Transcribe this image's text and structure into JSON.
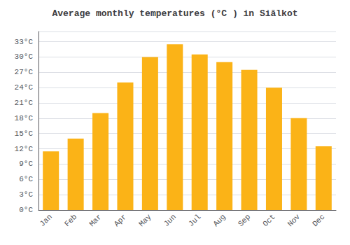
{
  "chart_data": {
    "type": "bar",
    "title": "Average monthly temperatures (°C ) in Siālkot",
    "categories": [
      "Jan",
      "Feb",
      "Mar",
      "Apr",
      "May",
      "Jun",
      "Jul",
      "Aug",
      "Sep",
      "Oct",
      "Nov",
      "Dec"
    ],
    "values": [
      11.5,
      14.0,
      19.0,
      25.0,
      30.0,
      32.5,
      30.5,
      29.0,
      27.5,
      24.0,
      18.0,
      12.5
    ],
    "color": "#FBB317",
    "ylim": [
      0,
      35
    ],
    "yticks": [
      {
        "value": 0,
        "label": "0°C"
      },
      {
        "value": 3,
        "label": "3°C"
      },
      {
        "value": 6,
        "label": "6°C"
      },
      {
        "value": 9,
        "label": "9°C"
      },
      {
        "value": 12,
        "label": "12°C"
      },
      {
        "value": 15,
        "label": "15°C"
      },
      {
        "value": 18,
        "label": "18°C"
      },
      {
        "value": 21,
        "label": "21°C"
      },
      {
        "value": 24,
        "label": "24°C"
      },
      {
        "value": 27,
        "label": "27°C"
      },
      {
        "value": 30,
        "label": "30°C"
      },
      {
        "value": 33,
        "label": "33°C"
      }
    ],
    "grid": true
  }
}
